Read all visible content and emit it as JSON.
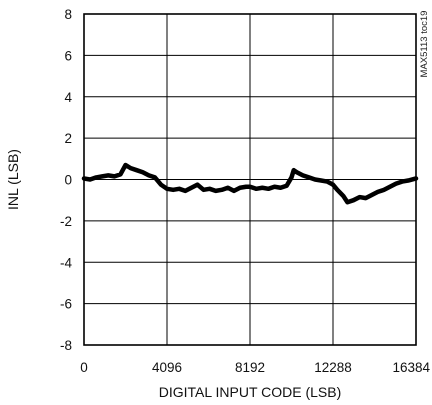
{
  "chart_data": {
    "type": "line",
    "title": "",
    "xlabel": "DIGITAL INPUT CODE (LSB)",
    "ylabel": "INL (LSB)",
    "figure_id": "MAX5113 toc19",
    "xlim": [
      0,
      16384
    ],
    "ylim": [
      -8,
      8
    ],
    "xticks": [
      0,
      4096,
      8192,
      12288,
      16384
    ],
    "xtick_labels": [
      "0",
      "4096",
      "8192",
      "12288",
      "16384"
    ],
    "yticks": [
      -8,
      -6,
      -4,
      -2,
      0,
      2,
      4,
      6,
      8
    ],
    "ytick_labels": [
      "-8",
      "-6",
      "-4",
      "-2",
      "0",
      "2",
      "4",
      "6",
      "8"
    ],
    "grid": true,
    "line_color": "#000000",
    "series": [
      {
        "x": [
          0,
          300,
          600,
          900,
          1200,
          1500,
          1800,
          2048,
          2300,
          2600,
          2900,
          3200,
          3500,
          3800,
          4096,
          4400,
          4700,
          5000,
          5300,
          5600,
          5900,
          6200,
          6500,
          6800,
          7100,
          7400,
          7700,
          8000,
          8192,
          8500,
          8800,
          9100,
          9400,
          9700,
          10000,
          10240,
          10350,
          10500,
          10800,
          11100,
          11400,
          11700,
          12000,
          12288,
          12500,
          12800,
          13000,
          13300,
          13600,
          13900,
          14200,
          14500,
          14800,
          15100,
          15400,
          15700,
          16000,
          16384
        ],
        "y": [
          0.05,
          0.0,
          0.1,
          0.15,
          0.2,
          0.15,
          0.25,
          0.7,
          0.55,
          0.45,
          0.35,
          0.2,
          0.1,
          -0.25,
          -0.45,
          -0.5,
          -0.45,
          -0.55,
          -0.4,
          -0.25,
          -0.5,
          -0.45,
          -0.55,
          -0.5,
          -0.4,
          -0.55,
          -0.4,
          -0.35,
          -0.35,
          -0.45,
          -0.4,
          -0.45,
          -0.35,
          -0.4,
          -0.3,
          0.1,
          0.45,
          0.35,
          0.2,
          0.1,
          0.0,
          -0.05,
          -0.1,
          -0.25,
          -0.5,
          -0.8,
          -1.1,
          -1.0,
          -0.85,
          -0.9,
          -0.75,
          -0.6,
          -0.5,
          -0.35,
          -0.2,
          -0.1,
          -0.05,
          0.05
        ]
      }
    ]
  }
}
